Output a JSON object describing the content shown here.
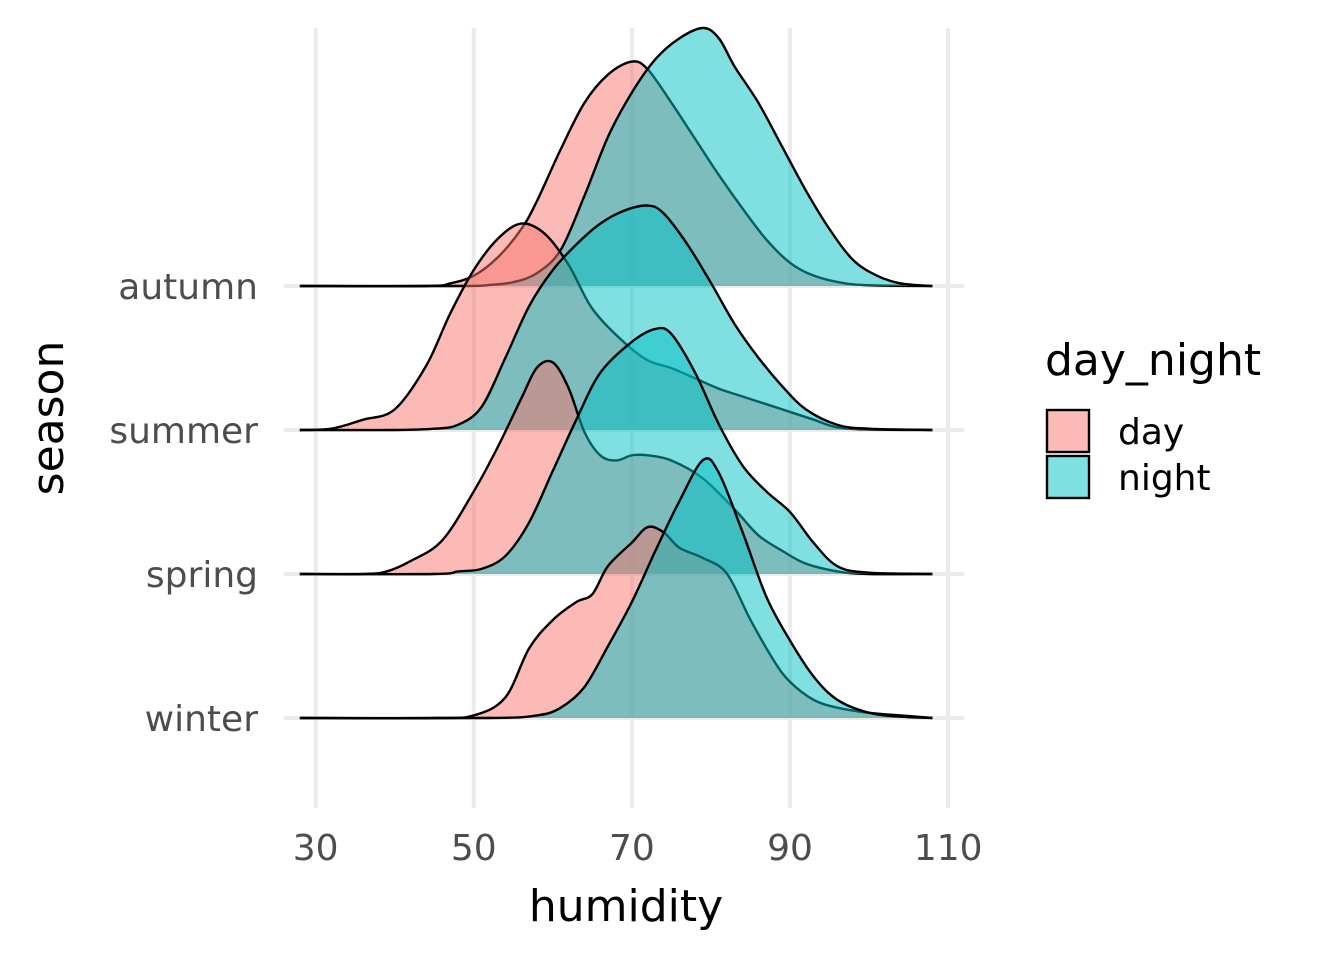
{
  "chart_data": {
    "type": "area",
    "subtype": "ridgeline-density",
    "xlabel": "humidity",
    "ylabel": "season",
    "xlim": [
      26,
      112
    ],
    "x_ticks": [
      30,
      50,
      70,
      90,
      110
    ],
    "x_tick_labels": [
      "30",
      "50",
      "70",
      "90",
      "110"
    ],
    "categories": [
      "winter",
      "spring",
      "summer",
      "autumn"
    ],
    "grid": true,
    "legend": {
      "title": "day_night",
      "position": "right",
      "entries": [
        {
          "label": "day",
          "color": "#F8766D"
        },
        {
          "label": "night",
          "color": "#00BFC4"
        }
      ]
    },
    "fill_alpha": 0.5,
    "series": [
      {
        "name": "day",
        "category": "winter",
        "color": "#F8766D",
        "points": [
          [
            28,
            0
          ],
          [
            45,
            0
          ],
          [
            50,
            0.01
          ],
          [
            54,
            0.08
          ],
          [
            57,
            0.27
          ],
          [
            60,
            0.38
          ],
          [
            63,
            0.45
          ],
          [
            65,
            0.48
          ],
          [
            67,
            0.59
          ],
          [
            70,
            0.68
          ],
          [
            72,
            0.74
          ],
          [
            74,
            0.72
          ],
          [
            76,
            0.66
          ],
          [
            79,
            0.62
          ],
          [
            82,
            0.56
          ],
          [
            85,
            0.38
          ],
          [
            88,
            0.22
          ],
          [
            90,
            0.14
          ],
          [
            93,
            0.07
          ],
          [
            96,
            0.04
          ],
          [
            100,
            0.02
          ],
          [
            104,
            0.01
          ],
          [
            108,
            0
          ]
        ]
      },
      {
        "name": "night",
        "category": "winter",
        "color": "#00BFC4",
        "points": [
          [
            28,
            0
          ],
          [
            52,
            0
          ],
          [
            58,
            0.01
          ],
          [
            61,
            0.04
          ],
          [
            64,
            0.12
          ],
          [
            67,
            0.28
          ],
          [
            70,
            0.45
          ],
          [
            73,
            0.65
          ],
          [
            76,
            0.84
          ],
          [
            79,
            1.0
          ],
          [
            81,
            0.95
          ],
          [
            84,
            0.72
          ],
          [
            87,
            0.47
          ],
          [
            90,
            0.3
          ],
          [
            93,
            0.16
          ],
          [
            96,
            0.07
          ],
          [
            100,
            0.02
          ],
          [
            104,
            0.005
          ],
          [
            108,
            0
          ]
        ]
      },
      {
        "name": "day",
        "category": "spring",
        "color": "#F8766D",
        "points": [
          [
            28,
            0
          ],
          [
            36,
            0
          ],
          [
            39,
            0.01
          ],
          [
            42,
            0.05
          ],
          [
            46,
            0.13
          ],
          [
            50,
            0.32
          ],
          [
            53,
            0.49
          ],
          [
            56,
            0.68
          ],
          [
            58,
            0.8
          ],
          [
            60,
            0.82
          ],
          [
            62,
            0.72
          ],
          [
            64,
            0.55
          ],
          [
            66,
            0.46
          ],
          [
            68,
            0.44
          ],
          [
            70,
            0.46
          ],
          [
            72,
            0.46
          ],
          [
            75,
            0.44
          ],
          [
            79,
            0.37
          ],
          [
            83,
            0.25
          ],
          [
            86,
            0.15
          ],
          [
            89,
            0.09
          ],
          [
            92,
            0.04
          ],
          [
            96,
            0.01
          ],
          [
            100,
            0
          ],
          [
            108,
            0
          ]
        ]
      },
      {
        "name": "night",
        "category": "spring",
        "color": "#00BFC4",
        "points": [
          [
            28,
            0
          ],
          [
            45,
            0
          ],
          [
            48,
            0.01
          ],
          [
            51,
            0.02
          ],
          [
            54,
            0.07
          ],
          [
            57,
            0.2
          ],
          [
            60,
            0.4
          ],
          [
            63,
            0.6
          ],
          [
            66,
            0.78
          ],
          [
            70,
            0.9
          ],
          [
            73,
            0.95
          ],
          [
            75,
            0.93
          ],
          [
            78,
            0.78
          ],
          [
            81,
            0.58
          ],
          [
            84,
            0.42
          ],
          [
            87,
            0.32
          ],
          [
            90,
            0.24
          ],
          [
            93,
            0.12
          ],
          [
            96,
            0.03
          ],
          [
            100,
            0.005
          ],
          [
            108,
            0
          ]
        ]
      },
      {
        "name": "day",
        "category": "summer",
        "color": "#F8766D",
        "points": [
          [
            28,
            0
          ],
          [
            32,
            0.005
          ],
          [
            36,
            0.04
          ],
          [
            40,
            0.08
          ],
          [
            44,
            0.25
          ],
          [
            47,
            0.45
          ],
          [
            50,
            0.62
          ],
          [
            53,
            0.74
          ],
          [
            56,
            0.8
          ],
          [
            59,
            0.76
          ],
          [
            62,
            0.64
          ],
          [
            65,
            0.47
          ],
          [
            69,
            0.34
          ],
          [
            72,
            0.27
          ],
          [
            75,
            0.24
          ],
          [
            78,
            0.2
          ],
          [
            81,
            0.16
          ],
          [
            84,
            0.13
          ],
          [
            87,
            0.1
          ],
          [
            90,
            0.07
          ],
          [
            93,
            0.04
          ],
          [
            96,
            0.01
          ],
          [
            100,
            0.002
          ],
          [
            108,
            0
          ]
        ]
      },
      {
        "name": "night",
        "category": "summer",
        "color": "#00BFC4",
        "points": [
          [
            28,
            0
          ],
          [
            40,
            0
          ],
          [
            45,
            0.005
          ],
          [
            48,
            0.02
          ],
          [
            51,
            0.09
          ],
          [
            54,
            0.28
          ],
          [
            57,
            0.48
          ],
          [
            60,
            0.62
          ],
          [
            63,
            0.72
          ],
          [
            66,
            0.8
          ],
          [
            69,
            0.85
          ],
          [
            72,
            0.87
          ],
          [
            74,
            0.84
          ],
          [
            77,
            0.72
          ],
          [
            80,
            0.57
          ],
          [
            83,
            0.41
          ],
          [
            86,
            0.28
          ],
          [
            89,
            0.17
          ],
          [
            92,
            0.08
          ],
          [
            96,
            0.02
          ],
          [
            100,
            0.005
          ],
          [
            108,
            0
          ]
        ]
      },
      {
        "name": "day",
        "category": "autumn",
        "color": "#F8766D",
        "points": [
          [
            28,
            0
          ],
          [
            44,
            0
          ],
          [
            47,
            0.01
          ],
          [
            50,
            0.04
          ],
          [
            53,
            0.11
          ],
          [
            56,
            0.22
          ],
          [
            58,
            0.33
          ],
          [
            61,
            0.53
          ],
          [
            64,
            0.71
          ],
          [
            67,
            0.82
          ],
          [
            70,
            0.87
          ],
          [
            72,
            0.84
          ],
          [
            75,
            0.71
          ],
          [
            78,
            0.57
          ],
          [
            81,
            0.43
          ],
          [
            84,
            0.3
          ],
          [
            87,
            0.18
          ],
          [
            90,
            0.09
          ],
          [
            93,
            0.04
          ],
          [
            97,
            0.01
          ],
          [
            101,
            0.002
          ],
          [
            108,
            0
          ]
        ]
      },
      {
        "name": "night",
        "category": "autumn",
        "color": "#00BFC4",
        "points": [
          [
            28,
            0
          ],
          [
            48,
            0
          ],
          [
            52,
            0.004
          ],
          [
            55,
            0.015
          ],
          [
            58,
            0.05
          ],
          [
            61,
            0.14
          ],
          [
            64,
            0.35
          ],
          [
            67,
            0.58
          ],
          [
            70,
            0.75
          ],
          [
            73,
            0.88
          ],
          [
            76,
            0.96
          ],
          [
            79,
            1.0
          ],
          [
            81,
            0.96
          ],
          [
            83,
            0.85
          ],
          [
            86,
            0.71
          ],
          [
            89,
            0.54
          ],
          [
            92,
            0.37
          ],
          [
            95,
            0.22
          ],
          [
            98,
            0.1
          ],
          [
            101,
            0.04
          ],
          [
            104,
            0.01
          ],
          [
            108,
            0
          ]
        ]
      }
    ]
  }
}
